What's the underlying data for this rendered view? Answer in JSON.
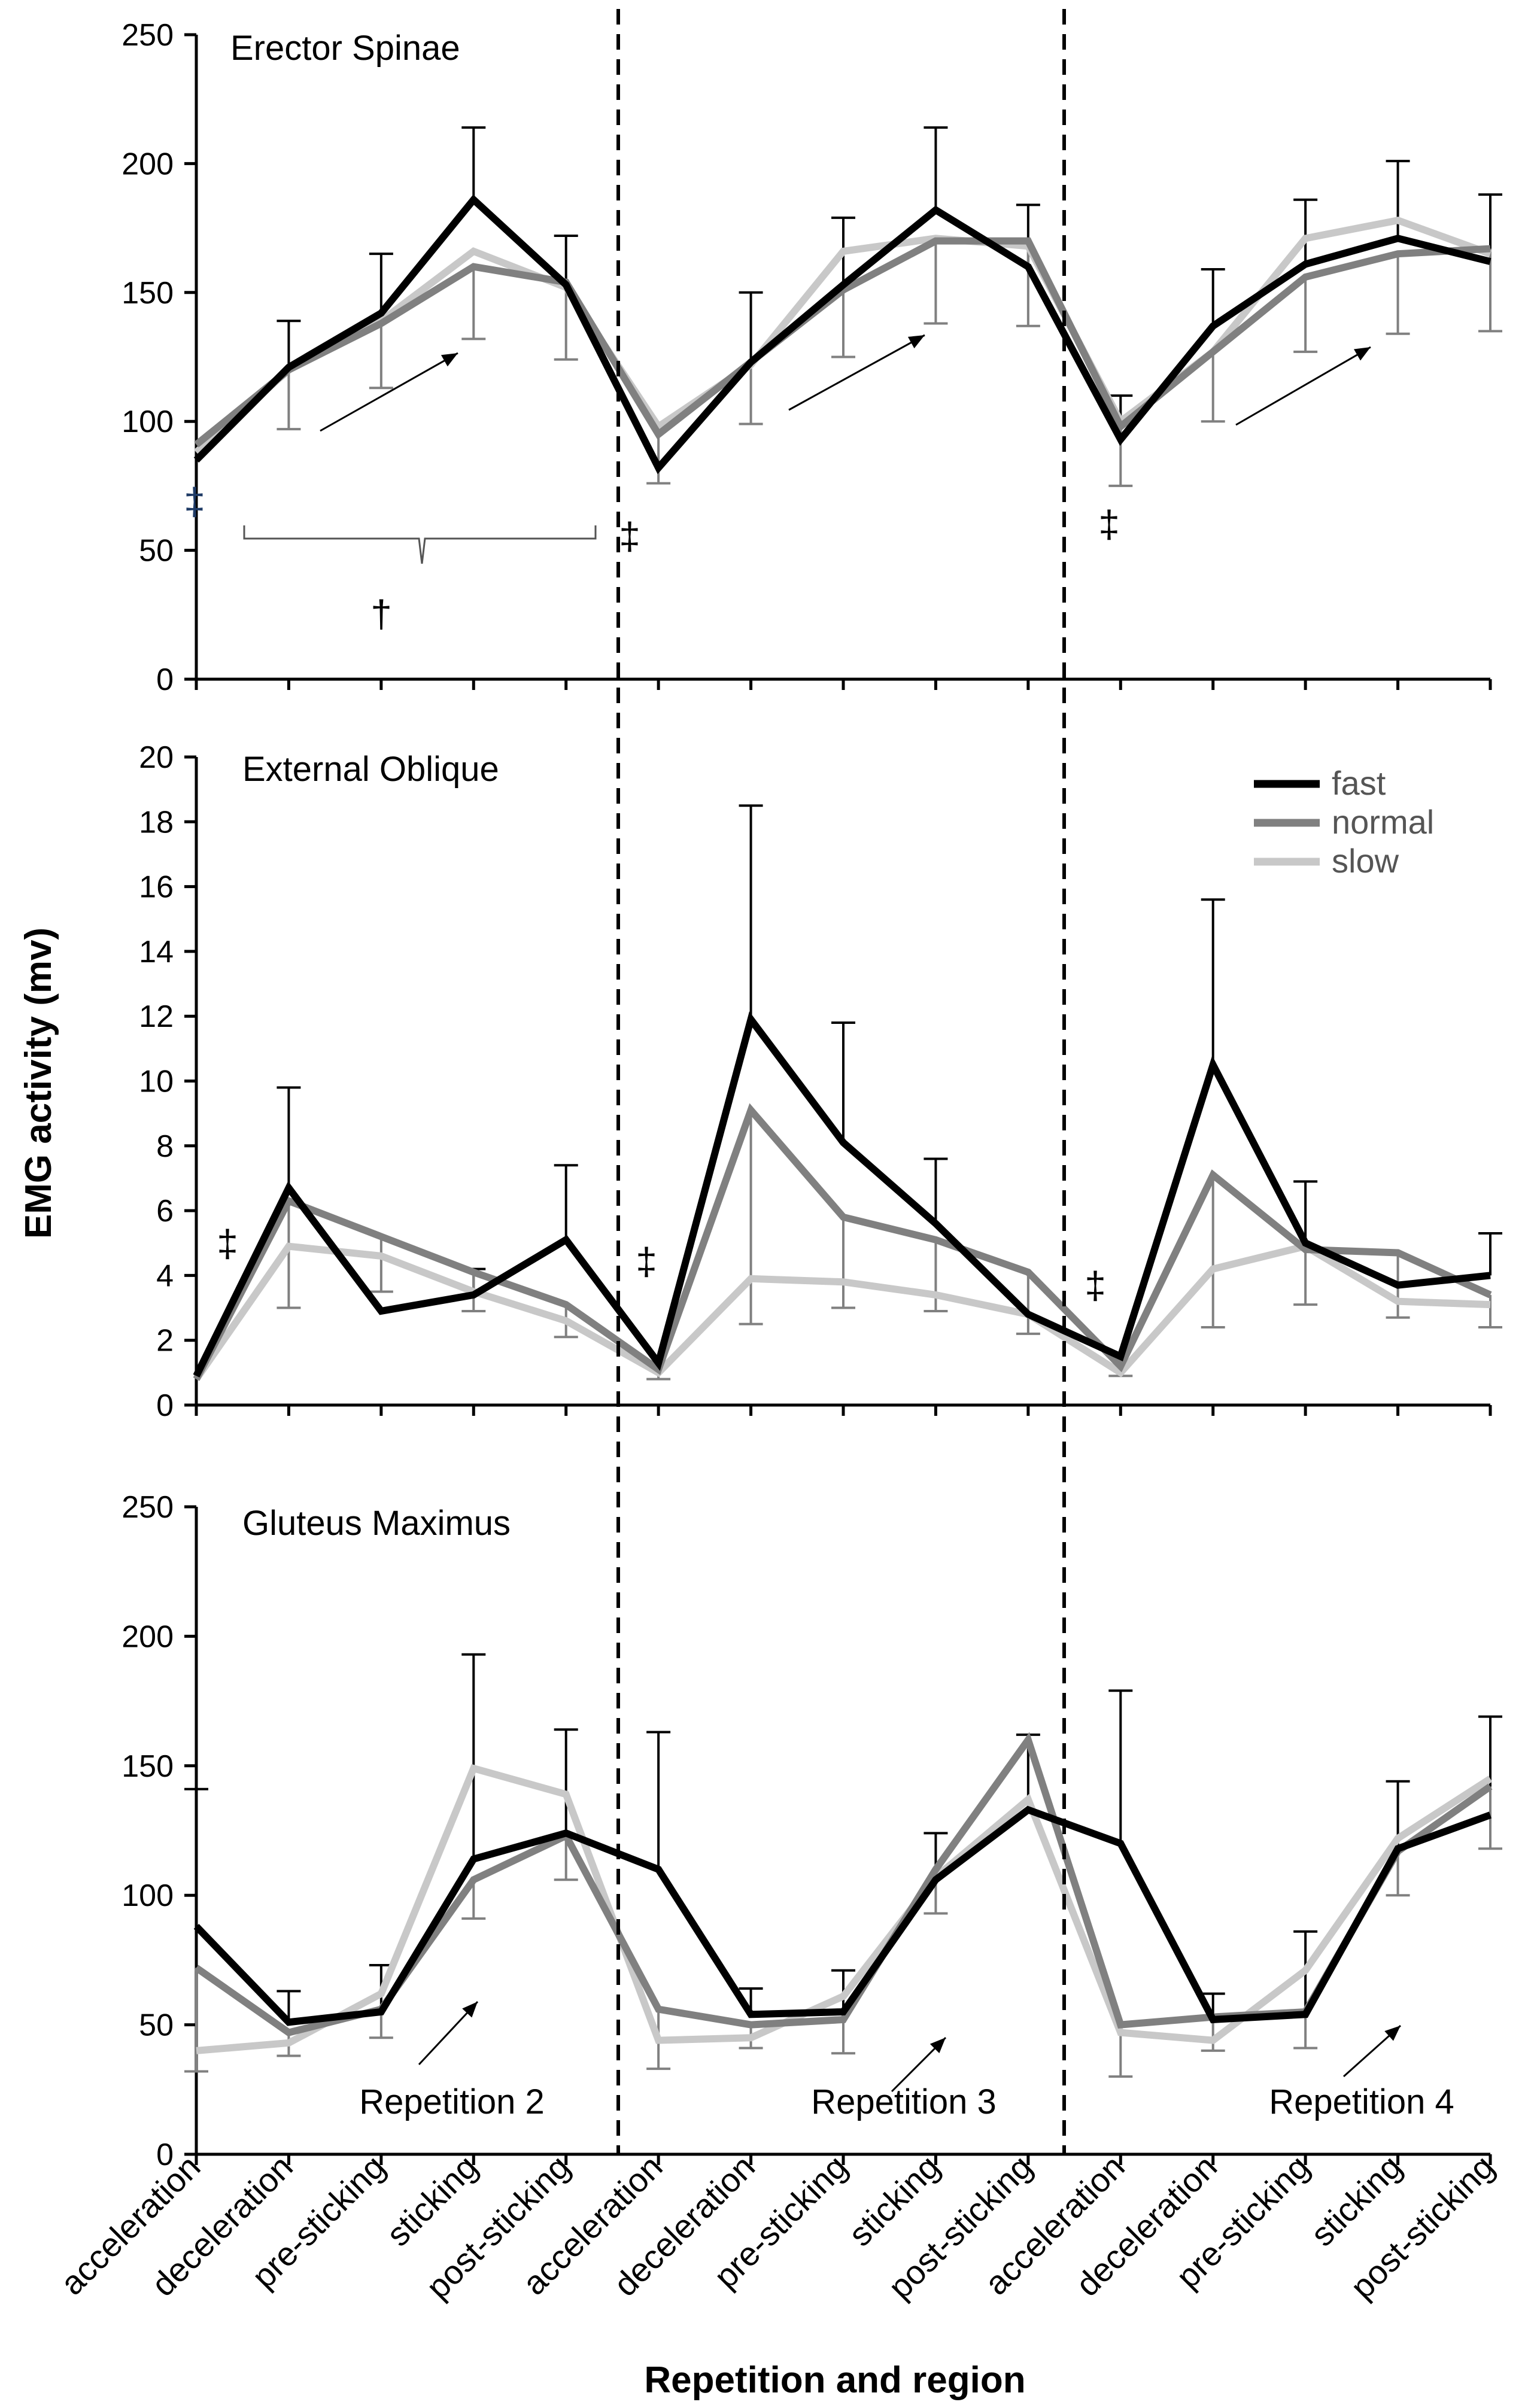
{
  "chart_data": {
    "type": "line",
    "xlabel": "Repetition and region",
    "ylabel": "EMG activity (mv)",
    "categories": [
      "acceleration",
      "deceleration",
      "pre-sticking",
      "sticking",
      "post-sticking",
      "acceleration",
      "deceleration",
      "pre-sticking",
      "sticking",
      "post-sticking",
      "acceleration",
      "deceleration",
      "pre-sticking",
      "sticking",
      "post-sticking"
    ],
    "repetitions": [
      "Repetition 2",
      "Repetition 3",
      "Repetition 4"
    ],
    "legend": {
      "placement": "top-right",
      "entries": [
        "fast",
        "normal",
        "slow"
      ]
    },
    "colors": {
      "fast": "#000000",
      "normal": "#808080",
      "slow": "#c8c8c8"
    },
    "panels": [
      {
        "title": "Erector Spinae",
        "ylim": [
          0,
          250
        ],
        "yticks": [
          "0",
          "50",
          "100",
          "150",
          "200",
          "250"
        ],
        "series": [
          {
            "name": "fast",
            "values": [
              85,
              121,
              142,
              186,
              153,
              82,
              123,
              153,
              182,
              160,
              93,
              137,
              161,
              171,
              162
            ],
            "err_hi": [
              null,
              139,
              165,
              214,
              172,
              null,
              150,
              179,
              214,
              184,
              110,
              159,
              186,
              201,
              188
            ]
          },
          {
            "name": "normal",
            "values": [
              91,
              120,
              138,
              160,
              154,
              95,
              123,
              151,
              170,
              170,
              98,
              127,
              156,
              165,
              167
            ],
            "err_lo": [
              null,
              97,
              113,
              132,
              124,
              76,
              99,
              125,
              138,
              137,
              75,
              100,
              127,
              134,
              135
            ]
          },
          {
            "name": "slow",
            "values": [
              88,
              120,
              139,
              166,
              152,
              98,
              122,
              166,
              171,
              168,
              100,
              127,
              171,
              178,
              165
            ]
          }
        ],
        "annotations": [
          "‡",
          "†",
          "‡",
          "‡"
        ]
      },
      {
        "title": "External Oblique",
        "ylim": [
          0,
          20
        ],
        "yticks": [
          "0",
          "2",
          "4",
          "6",
          "8",
          "10",
          "12",
          "14",
          "16",
          "18",
          "20"
        ],
        "series": [
          {
            "name": "fast",
            "values": [
              0.9,
              6.7,
              2.9,
              3.4,
              5.1,
              1.3,
              11.9,
              8.1,
              5.6,
              2.8,
              1.5,
              10.5,
              5.0,
              3.7,
              4.0
            ],
            "err_hi": [
              null,
              9.8,
              null,
              4.2,
              7.4,
              null,
              18.5,
              11.8,
              7.6,
              null,
              null,
              15.6,
              6.9,
              null,
              5.3
            ]
          },
          {
            "name": "normal",
            "values": [
              0.8,
              6.3,
              5.2,
              4.1,
              3.1,
              1.1,
              9.1,
              5.8,
              5.1,
              4.1,
              1.2,
              7.1,
              4.8,
              4.7,
              3.4
            ],
            "err_lo": [
              null,
              3.0,
              3.5,
              2.9,
              2.1,
              0.8,
              2.5,
              3.0,
              2.9,
              2.2,
              0.9,
              2.4,
              3.1,
              2.7,
              2.4
            ]
          },
          {
            "name": "slow",
            "values": [
              0.8,
              4.9,
              4.6,
              3.5,
              2.6,
              1.0,
              3.9,
              3.8,
              3.4,
              2.8,
              1.0,
              4.2,
              4.9,
              3.2,
              3.1
            ]
          }
        ],
        "annotations": [
          "‡",
          "‡",
          "‡"
        ]
      },
      {
        "title": "Gluteus Maximus",
        "ylim": [
          0,
          250
        ],
        "yticks": [
          "0",
          "50",
          "100",
          "150",
          "200",
          "250"
        ],
        "series": [
          {
            "name": "fast",
            "values": [
              88,
              51,
              55,
              114,
              124,
              110,
              54,
              55,
              106,
              133,
              120,
              52,
              54,
              118,
              131
            ],
            "err_hi": [
              141,
              63,
              73,
              193,
              164,
              163,
              64,
              71,
              124,
              162,
              179,
              62,
              86,
              144,
              169
            ]
          },
          {
            "name": "normal",
            "values": [
              72,
              47,
              56,
              106,
              123,
              56,
              50,
              52,
              110,
              160,
              50,
              53,
              55,
              117,
              142
            ],
            "err_lo": [
              32,
              38,
              45,
              91,
              106,
              33,
              41,
              39,
              93,
              null,
              30,
              40,
              41,
              100,
              118
            ]
          },
          {
            "name": "slow",
            "values": [
              40,
              43,
              62,
              149,
              139,
              44,
              45,
              61,
              107,
              137,
              47,
              44,
              71,
              122,
              145
            ]
          }
        ]
      }
    ]
  }
}
